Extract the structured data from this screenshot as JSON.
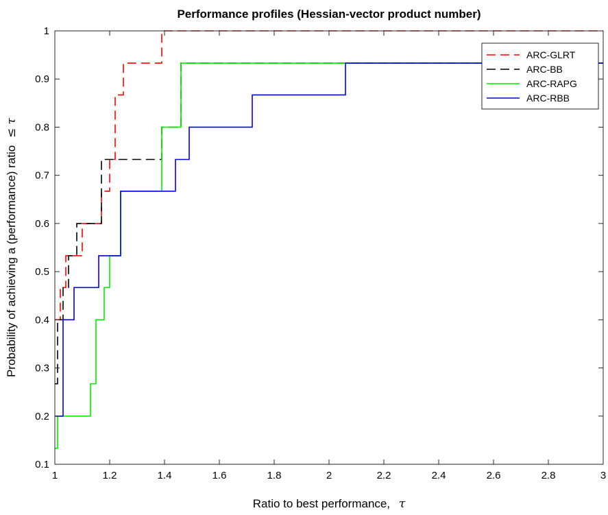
{
  "chart_data": {
    "type": "line",
    "title": "Performance profiles (Hessian-vector product number)",
    "xlabel": "Ratio to best performance,",
    "xlabel_symbol": "τ",
    "ylabel": "Probability of achieving a (performance) ratio",
    "ylabel_symbol": "≤ τ",
    "xlim": [
      1,
      3
    ],
    "ylim": [
      0.1,
      1
    ],
    "grid": false,
    "legend_position": "top-right",
    "x_ticks": [
      "1",
      "1.2",
      "1.4",
      "1.6",
      "1.8",
      "2",
      "2.2",
      "2.4",
      "2.6",
      "2.8",
      "3"
    ],
    "y_ticks": [
      "0.1",
      "0.2",
      "0.3",
      "0.4",
      "0.5",
      "0.6",
      "0.7",
      "0.8",
      "0.9",
      "1"
    ],
    "series": [
      {
        "name": "ARC-GLRT",
        "color": "#ff0000",
        "dash": "dashed",
        "x": [
          1.0,
          1.02,
          1.02,
          1.04,
          1.04,
          1.1,
          1.1,
          1.17,
          1.17,
          1.2,
          1.2,
          1.22,
          1.22,
          1.25,
          1.25,
          1.39,
          1.39,
          1.67,
          1.67,
          3.0
        ],
        "y": [
          0.4,
          0.4,
          0.467,
          0.467,
          0.533,
          0.533,
          0.6,
          0.6,
          0.667,
          0.667,
          0.733,
          0.733,
          0.867,
          0.867,
          0.933,
          0.933,
          1.0,
          1.0,
          1.0,
          1.0
        ]
      },
      {
        "name": "ARC-BB",
        "color": "#000000",
        "dash": "dashed",
        "x": [
          1.0,
          1.01,
          1.01,
          1.03,
          1.03,
          1.05,
          1.05,
          1.08,
          1.08,
          1.17,
          1.17,
          1.39,
          1.39,
          1.46,
          1.46,
          1.91,
          1.91,
          3.0
        ],
        "y": [
          0.267,
          0.267,
          0.4,
          0.4,
          0.467,
          0.467,
          0.533,
          0.533,
          0.6,
          0.6,
          0.733,
          0.733,
          0.8,
          0.8,
          0.933,
          0.933,
          0.933,
          0.933
        ]
      },
      {
        "name": "ARC-RAPG",
        "color": "#00ee00",
        "dash": "solid",
        "x": [
          1.0,
          1.01,
          1.01,
          1.13,
          1.13,
          1.15,
          1.15,
          1.18,
          1.18,
          1.2,
          1.2,
          1.24,
          1.24,
          1.39,
          1.39,
          1.46,
          1.46,
          1.96,
          1.96,
          3.0
        ],
        "y": [
          0.133,
          0.133,
          0.2,
          0.2,
          0.267,
          0.267,
          0.4,
          0.4,
          0.467,
          0.467,
          0.533,
          0.533,
          0.667,
          0.667,
          0.8,
          0.8,
          0.933,
          0.933,
          0.933,
          0.933
        ]
      },
      {
        "name": "ARC-RBB",
        "color": "#0000dd",
        "dash": "solid",
        "x": [
          1.0,
          1.03,
          1.03,
          1.07,
          1.07,
          1.16,
          1.16,
          1.24,
          1.24,
          1.44,
          1.44,
          1.49,
          1.49,
          1.72,
          1.72,
          2.06,
          2.06,
          3.0
        ],
        "y": [
          0.2,
          0.2,
          0.4,
          0.4,
          0.467,
          0.467,
          0.533,
          0.533,
          0.667,
          0.667,
          0.733,
          0.733,
          0.8,
          0.8,
          0.867,
          0.867,
          0.933,
          0.933
        ]
      }
    ]
  }
}
